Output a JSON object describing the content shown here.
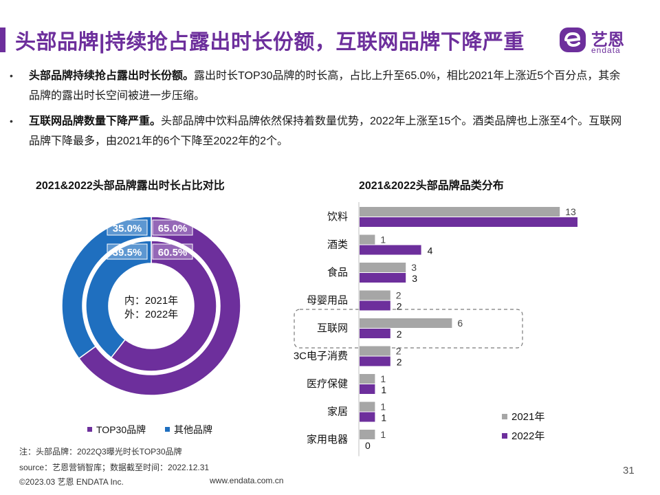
{
  "header": {
    "title": "头部品牌|持续抢占露出时长份额，互联网品牌下降严重",
    "logo_cn": "艺恩",
    "logo_en": "endata"
  },
  "bullets": [
    {
      "bold": "头部品牌持续抢占露出时长份额。",
      "text": "露出时长TOP30品牌的时长高，占比上升至65.0%，相比2021年上涨近5个百分点，其余品牌的露出时长空间被进一步压缩。"
    },
    {
      "bold": "互联网品牌数量下降严重。",
      "text": "头部品牌中饮料品牌依然保持着数量优势，2022年上涨至15个。酒类品牌也上涨至4个。互联网品牌下降最多，由2021年的6个下降至2022年的2个。"
    }
  ],
  "colors": {
    "purple": "#6d2f9c",
    "blue": "#1f6fbf",
    "gray": "#a6a6a6",
    "highlight_border": "#7a7a7a"
  },
  "chart_data": [
    {
      "type": "pie",
      "subtype": "donut",
      "title": "2021&2022头部品牌露出时长占比对比",
      "center_label_line1": "内：2021年",
      "center_label_line2": "外：2022年",
      "legend": [
        "TOP30品牌",
        "其他品牌"
      ],
      "rings": [
        {
          "name": "2021年",
          "position": "inner",
          "slices": [
            {
              "label": "TOP30品牌",
              "value": 60.5,
              "display": "60.5%"
            },
            {
              "label": "其他品牌",
              "value": 39.5,
              "display": "39.5%"
            }
          ]
        },
        {
          "name": "2022年",
          "position": "outer",
          "slices": [
            {
              "label": "TOP30品牌",
              "value": 65.0,
              "display": "65.0%"
            },
            {
              "label": "其他品牌",
              "value": 35.0,
              "display": "35.0%"
            }
          ]
        }
      ]
    },
    {
      "type": "bar",
      "orientation": "horizontal",
      "title": "2021&2022头部品牌品类分布",
      "categories": [
        "饮料",
        "酒类",
        "食品",
        "母婴用品",
        "互联网",
        "3C电子消费",
        "医疗保健",
        "家居",
        "家用电器"
      ],
      "series": [
        {
          "name": "2021年",
          "values": [
            13,
            1,
            3,
            2,
            6,
            2,
            1,
            1,
            1
          ]
        },
        {
          "name": "2022年",
          "values": [
            15,
            4,
            3,
            2,
            2,
            2,
            1,
            1,
            0
          ]
        }
      ],
      "xlim": [
        0,
        16
      ],
      "highlighted_category": "互联网",
      "legend": [
        "2021年",
        "2022年"
      ],
      "legend_position": "bottom-right"
    }
  ],
  "footnotes": {
    "note": "注：头部品牌：2022Q3曝光时长TOP30品牌",
    "source": "source：艺恩营销智库；数据截至时间：2022.12.31"
  },
  "footer": {
    "copyright": "©2023.03 艺恩 ENDATA Inc.",
    "website": "www.endata.com.cn",
    "page_number": "31"
  }
}
